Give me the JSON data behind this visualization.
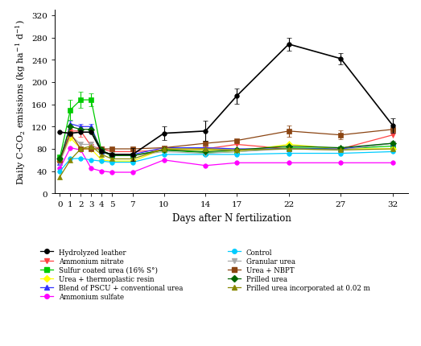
{
  "days": [
    0,
    1,
    2,
    3,
    4,
    5,
    7,
    10,
    14,
    17,
    22,
    27,
    32
  ],
  "series": {
    "Hydrolyzed leather": {
      "color": "#000000",
      "marker": "o",
      "markersize": 4,
      "linewidth": 1.2,
      "linestyle": "-",
      "values": [
        110,
        108,
        110,
        110,
        75,
        70,
        70,
        108,
        112,
        175,
        268,
        242,
        122
      ],
      "yerr": [
        0,
        0,
        0,
        0,
        0,
        0,
        12,
        12,
        18,
        14,
        12,
        10,
        13
      ]
    },
    "Ammonium nitrate": {
      "color": "#ff4444",
      "marker": "v",
      "markersize": 4,
      "linewidth": 0.9,
      "linestyle": "-",
      "values": [
        60,
        112,
        112,
        85,
        80,
        75,
        75,
        78,
        80,
        88,
        80,
        80,
        105
      ],
      "yerr": [
        0,
        10,
        10,
        8,
        0,
        0,
        0,
        0,
        0,
        0,
        0,
        0,
        0
      ]
    },
    "Sulfur coated urea (16% S°)": {
      "color": "#00cc00",
      "marker": "s",
      "markersize": 4,
      "linewidth": 0.9,
      "linestyle": "-",
      "values": [
        65,
        150,
        168,
        168,
        75,
        68,
        68,
        78,
        73,
        75,
        82,
        80,
        85
      ],
      "yerr": [
        0,
        18,
        15,
        12,
        0,
        0,
        0,
        0,
        0,
        0,
        0,
        0,
        0
      ]
    },
    "Urea + thermoplastic resin": {
      "color": "#ffff00",
      "marker": "D",
      "markersize": 4,
      "linewidth": 0.9,
      "linestyle": "-",
      "values": [
        58,
        100,
        80,
        80,
        60,
        58,
        58,
        80,
        78,
        75,
        88,
        80,
        80
      ],
      "yerr": [
        0,
        0,
        0,
        0,
        0,
        0,
        0,
        0,
        0,
        0,
        0,
        0,
        0
      ]
    },
    "Blend of PSCU + conventional urea": {
      "color": "#3333ff",
      "marker": "^",
      "markersize": 4,
      "linewidth": 0.9,
      "linestyle": "-",
      "values": [
        55,
        125,
        120,
        120,
        75,
        70,
        70,
        82,
        82,
        80,
        80,
        80,
        90
      ],
      "yerr": [
        0,
        5,
        5,
        5,
        0,
        0,
        0,
        0,
        0,
        0,
        0,
        0,
        0
      ]
    },
    "Ammonium sulfate": {
      "color": "#ff00ff",
      "marker": "o",
      "markersize": 4,
      "linewidth": 0.9,
      "linestyle": "-",
      "values": [
        45,
        82,
        78,
        45,
        40,
        38,
        38,
        60,
        50,
        55,
        55,
        55,
        55
      ],
      "yerr": [
        0,
        0,
        0,
        0,
        0,
        0,
        0,
        0,
        0,
        0,
        0,
        0,
        0
      ]
    },
    "Control": {
      "color": "#00ccff",
      "marker": "o",
      "markersize": 4,
      "linewidth": 0.9,
      "linestyle": "-",
      "values": [
        40,
        62,
        63,
        60,
        58,
        56,
        56,
        70,
        70,
        70,
        72,
        72,
        75
      ],
      "yerr": [
        0,
        0,
        0,
        0,
        0,
        0,
        0,
        0,
        0,
        0,
        0,
        0,
        0
      ]
    },
    "Granular urea": {
      "color": "#aaaaaa",
      "marker": "v",
      "markersize": 4,
      "linewidth": 0.9,
      "linestyle": "-",
      "values": [
        55,
        105,
        88,
        88,
        75,
        70,
        68,
        75,
        72,
        75,
        80,
        78,
        90
      ],
      "yerr": [
        0,
        0,
        0,
        0,
        0,
        0,
        0,
        0,
        0,
        0,
        0,
        0,
        0
      ]
    },
    "Urea + NBPT": {
      "color": "#8B4513",
      "marker": "s",
      "markersize": 4,
      "linewidth": 0.9,
      "linestyle": "-",
      "values": [
        60,
        108,
        80,
        80,
        80,
        80,
        80,
        82,
        90,
        95,
        112,
        105,
        115
      ],
      "yerr": [
        0,
        0,
        0,
        0,
        0,
        0,
        0,
        0,
        0,
        0,
        10,
        8,
        0
      ]
    },
    "Prilled urea": {
      "color": "#006600",
      "marker": "D",
      "markersize": 4,
      "linewidth": 0.9,
      "linestyle": "-",
      "values": [
        62,
        120,
        115,
        115,
        78,
        68,
        68,
        78,
        75,
        78,
        85,
        82,
        90
      ],
      "yerr": [
        0,
        0,
        0,
        0,
        0,
        0,
        0,
        0,
        0,
        0,
        0,
        0,
        0
      ]
    },
    "Prilled urea incorporated at 0.02 m": {
      "color": "#888800",
      "marker": "^",
      "markersize": 4,
      "linewidth": 0.9,
      "linestyle": "-",
      "values": [
        30,
        60,
        80,
        85,
        70,
        62,
        62,
        80,
        80,
        78,
        80,
        78,
        80
      ],
      "yerr": [
        0,
        0,
        0,
        0,
        0,
        0,
        0,
        0,
        0,
        0,
        0,
        0,
        0
      ]
    }
  },
  "xticks": [
    0,
    1,
    2,
    3,
    4,
    5,
    7,
    10,
    14,
    17,
    22,
    27,
    32
  ],
  "yticks": [
    0,
    40,
    80,
    120,
    160,
    200,
    240,
    280,
    320
  ],
  "ylim": [
    0,
    330
  ],
  "xlim": [
    -0.5,
    33.5
  ],
  "xlabel": "Days after N fertilization",
  "ylabel": "Daily C-CO$_2$ emissions (kg ha$^{-1}$ d$^{-1}$)",
  "legend_left": [
    "Hydrolyzed leather",
    "Ammonium nitrate",
    "Sulfur coated urea (16% S°)",
    "Urea + thermoplastic resin",
    "Blend of PSCU + conventional urea",
    "Ammonium sulfate"
  ],
  "legend_right": [
    "Control",
    "Granular urea",
    "Urea + NBPT",
    "Prilled urea",
    "Prilled urea incorporated at 0.02 m"
  ]
}
